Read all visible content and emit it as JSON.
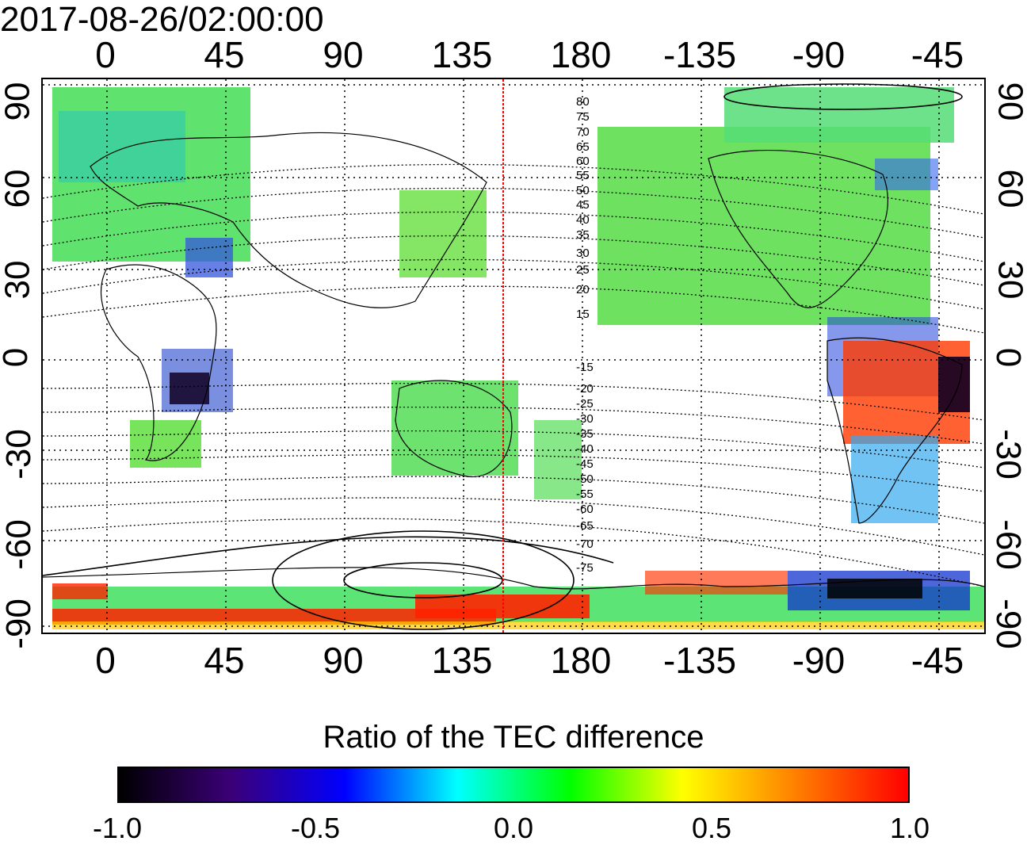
{
  "map": {
    "timestamp": "2017-08-26/02:00:00",
    "longitude_labels": [
      "0",
      "45",
      "90",
      "135",
      "180",
      "-135",
      "-90",
      "-45"
    ],
    "latitude_labels": [
      "90",
      "60",
      "30",
      "0",
      "-30",
      "-60",
      "-90"
    ],
    "magnetic_latitude_labels": [
      "80",
      "75",
      "70",
      "65",
      "60",
      "55",
      "50",
      "45",
      "40",
      "35",
      "30",
      "25",
      "20",
      "15",
      "-15",
      "-20",
      "-25",
      "-30",
      "-35",
      "-40",
      "-45",
      "-50",
      "-55",
      "-60",
      "-65",
      "-70",
      "-75"
    ],
    "meridian_marker_longitude": 150,
    "meridian_marker_color": "#ff0000"
  },
  "colorbar": {
    "title": "Ratio of the TEC difference",
    "ticks": [
      "-1.0",
      "-0.5",
      "0.0",
      "0.5",
      "1.0"
    ],
    "range": [
      -1.0,
      1.0
    ],
    "colors": [
      "#000000",
      "#3b0078",
      "#0000ff",
      "#00ffff",
      "#00ff00",
      "#ffff00",
      "#ff8000",
      "#ff0000"
    ]
  }
}
